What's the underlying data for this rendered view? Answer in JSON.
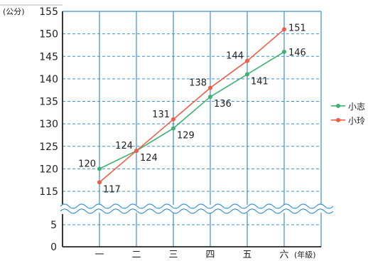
{
  "chart_data": {
    "type": "line",
    "y_unit_label": "(公分)",
    "x_unit_label": "(年級)",
    "categories": [
      "一",
      "二",
      "三",
      "四",
      "五",
      "六"
    ],
    "series": [
      {
        "name": "小志",
        "values": [
          120,
          124,
          129,
          136,
          141,
          146
        ],
        "color": "#3cb371"
      },
      {
        "name": "小玲",
        "values": [
          117,
          124,
          131,
          138,
          144,
          151
        ],
        "color": "#f25c45"
      }
    ],
    "y_ticks_upper": [
      115,
      120,
      125,
      130,
      135,
      140,
      145,
      150,
      155
    ],
    "y_ticks_lower": [
      0,
      5
    ],
    "ylim_upper": [
      115,
      155
    ],
    "ylim_lower": [
      0,
      5
    ],
    "axis_break": true,
    "grid": true,
    "grid_color": "#3a8fd1",
    "legend_position": "right"
  }
}
